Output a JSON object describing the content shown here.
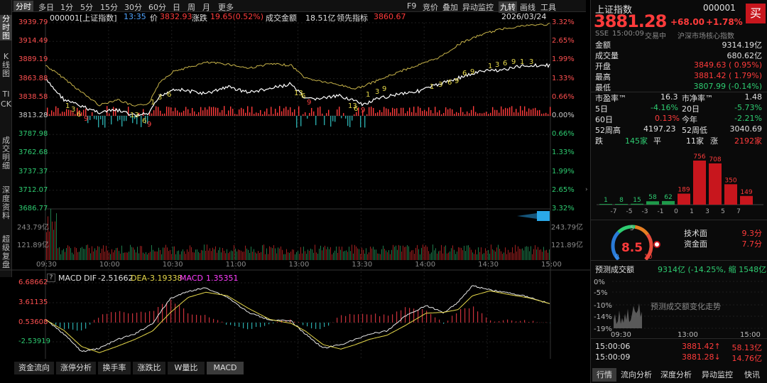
{
  "left_tabs": [
    {
      "label": "分时图"
    },
    {
      "label": "K线图"
    },
    {
      "label": "TICK"
    },
    {
      "label": "成交明细"
    },
    {
      "label": "深度资料"
    },
    {
      "label": "超级复盘"
    }
  ],
  "periods": [
    {
      "label": "分时",
      "active": true
    },
    {
      "label": "多日"
    },
    {
      "label": "1分"
    },
    {
      "label": "5分"
    },
    {
      "label": "15分"
    },
    {
      "label": "30分"
    },
    {
      "label": "60分"
    },
    {
      "label": "日"
    },
    {
      "label": "周"
    },
    {
      "label": "月"
    },
    {
      "label": "更多"
    }
  ],
  "tools": [
    "F9",
    "竞价",
    "叠加",
    "异动监控",
    "九转",
    "画线",
    "工具"
  ],
  "info": {
    "code": "000001[上证指数]",
    "time": "13:35",
    "price_label": "价",
    "price": "3832.93",
    "change_label": "涨跌",
    "change": "19.65(0.52%)",
    "amount_label": "成交金额",
    "amount": "18.51亿",
    "lead_label": "领先指标",
    "lead": "3860.67",
    "date": "2026/03/24"
  },
  "price_axis_left": [
    "3939.79",
    "3914.49",
    "3889.19",
    "3863.88",
    "3838.58",
    "3813.28",
    "3787.98",
    "3762.68",
    "3737.37",
    "3712.07",
    "3686.77"
  ],
  "price_axis_right": [
    "3.32%",
    "2.65%",
    "1.99%",
    "1.33%",
    "0.66%",
    "0.00%",
    "0.66%",
    "1.33%",
    "1.99%",
    "2.65%",
    "3.32%"
  ],
  "volume_axis": [
    "243.79亿",
    "121.89亿"
  ],
  "time_axis": [
    "09:30",
    "10:00",
    "10:30",
    "11:00",
    "13:00",
    "13:30",
    "14:00",
    "14:30",
    "15:00"
  ],
  "macd": {
    "q": "?",
    "title": "MACD",
    "dif_label": "DIF",
    "dif": "-2.51662",
    "dea_label": "DEA",
    "dea": "-3.19338",
    "macd_label": "MACD",
    "macd": "1.35351",
    "axis": [
      "6.68662",
      "3.61135",
      "0.53608",
      "-2.53919"
    ]
  },
  "bottom_tabs": [
    {
      "label": "资金流向"
    },
    {
      "label": "涨停分析"
    },
    {
      "label": "换手率"
    },
    {
      "label": "涨跌比"
    },
    {
      "label": "W量比"
    },
    {
      "label": "MACD",
      "active": true
    }
  ],
  "quote": {
    "name": "上证指数",
    "code": "000001",
    "price": "3881.28",
    "change": "+68.00",
    "pct": "+1.78%",
    "exchange": "SSE",
    "time": "15:00:09",
    "status": "交易中",
    "index_tag": "沪深市场核心指数",
    "buy": "买"
  },
  "stats": {
    "amount_label": "金额",
    "amount": "9314.19亿",
    "volume_label": "成交量",
    "volume": "680.62亿",
    "open_label": "开盘",
    "open": "3849.63 ( 0.95%)",
    "high_label": "最高",
    "high": "3881.42 ( 1.79%)",
    "low_label": "最低",
    "low": "3807.99 (-0.14%)",
    "pe_label": "市盈率™",
    "pe": "16.3",
    "pb_label": "市净率™",
    "pb": "1.48",
    "d5_label": "5日",
    "d5": "-4.16%",
    "d20_label": "20日",
    "d20": "-5.73%",
    "d60_label": "60日",
    "d60": "0.13%",
    "ytd_label": "今年",
    "ytd": "-2.21%",
    "h52_label": "52周高",
    "h52": "4197.23",
    "l52_label": "52周低",
    "l52": "3040.69",
    "down_label": "跌",
    "down": "145家",
    "flat_label": "平",
    "flat": "11家",
    "up_label": "涨",
    "up": "2192家"
  },
  "distribution": {
    "buckets": [
      "-7",
      "-5",
      "-3",
      "-1",
      "0",
      "1",
      "3",
      "5",
      "7"
    ],
    "counts": [
      1,
      8,
      15,
      58,
      62,
      189,
      756,
      708,
      350,
      149
    ]
  },
  "score": {
    "value": "8.5",
    "min": "0",
    "mid": "5",
    "max": "10",
    "tech_label": "技术面",
    "tech": "9.3分",
    "fund_label": "资金面",
    "fund": "7.7分"
  },
  "forecast": {
    "title": "预测成交额",
    "value": "9314亿 (-14.25%, 缩 1548亿)",
    "axis": [
      "0%",
      "-5%",
      "-10%",
      "-14%",
      "-19%"
    ],
    "hint": "预测成交额变化走势",
    "times": [
      "09:30",
      "13:00",
      "15:00"
    ]
  },
  "ticks": [
    {
      "time": "15:00:06",
      "price": "3881.42↑",
      "vol": "58.13亿"
    },
    {
      "time": "15:00:09",
      "price": "3881.28↓",
      "vol": "14.76亿"
    }
  ],
  "right_tabs": [
    {
      "label": "行情",
      "active": true
    },
    {
      "label": "流向分析"
    },
    {
      "label": "深度分析"
    },
    {
      "label": "异动监控"
    },
    {
      "label": "快讯"
    }
  ],
  "jiuzhuan_marks": [
    "1",
    "3",
    "6",
    "9",
    "13",
    "6",
    "9",
    "13",
    "6",
    "9",
    "13",
    "6",
    "9",
    "13",
    "6",
    "9",
    "13",
    "6",
    "9"
  ],
  "colors": {
    "up": "#ff3b3b",
    "down": "#2ecc71",
    "price_line": "#ffffff",
    "avg_line": "#c8b44a",
    "accent": "#c8161d"
  }
}
